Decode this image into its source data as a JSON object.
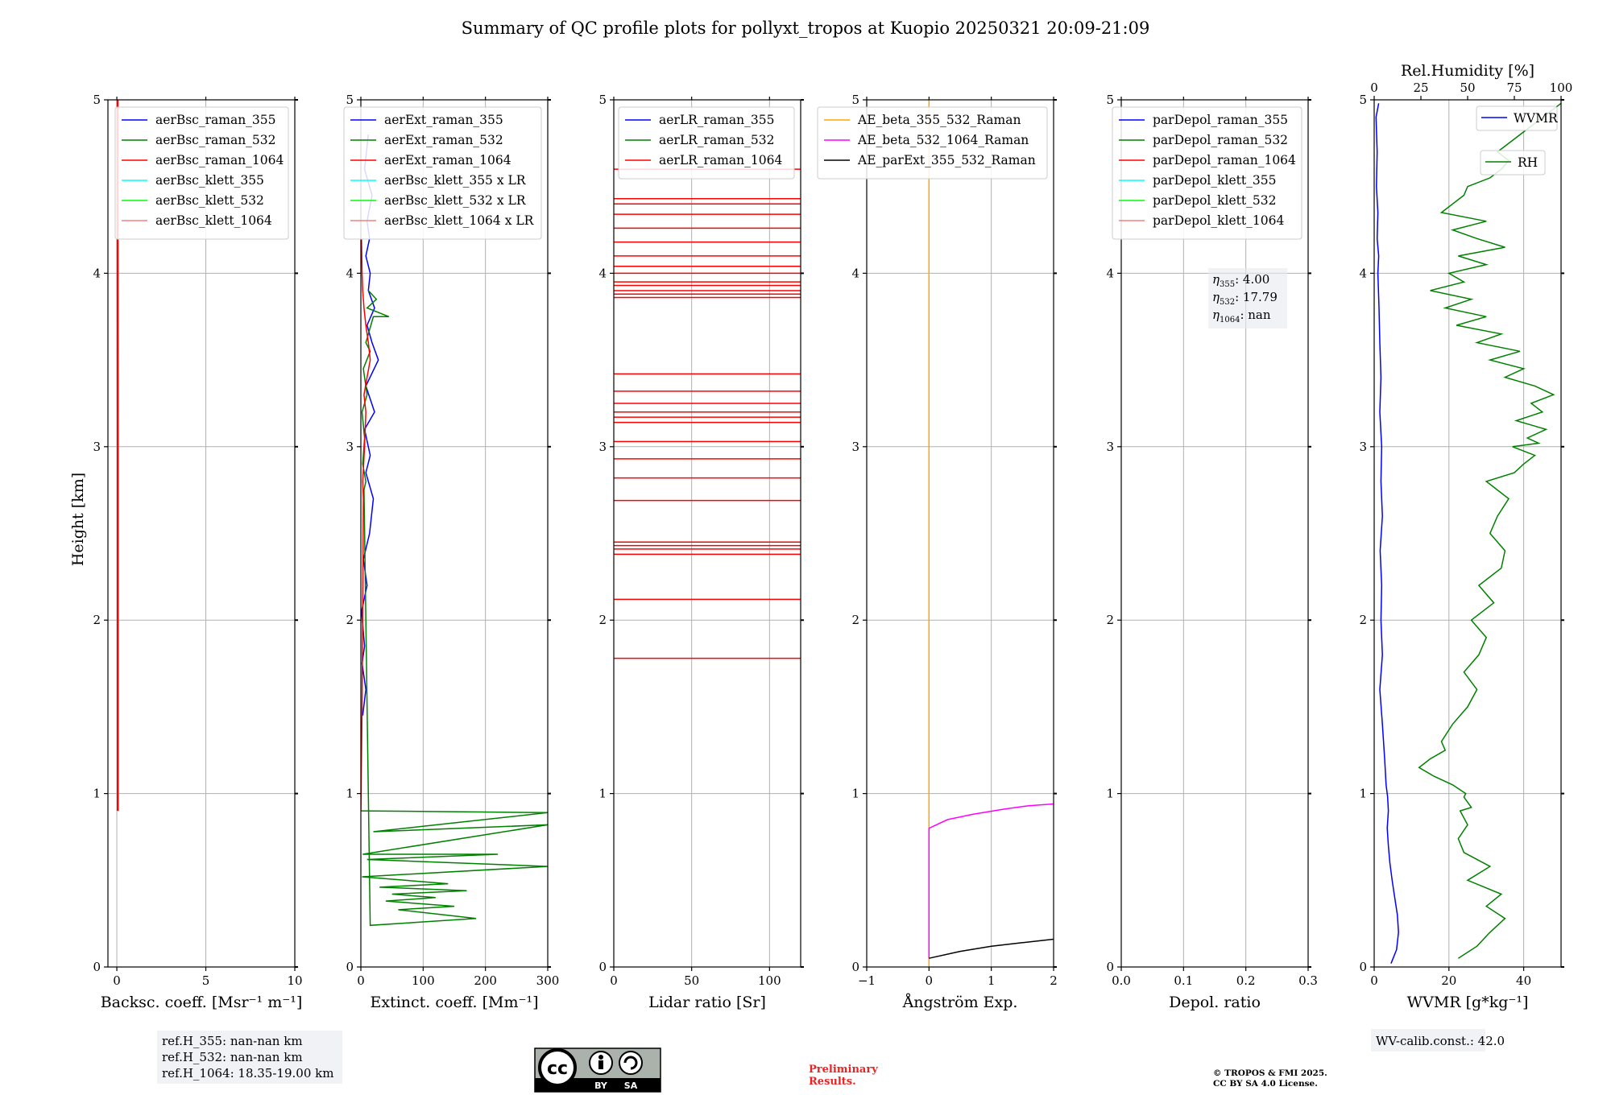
{
  "figure": {
    "title": "Summary of QC profile plots for pollyxt_tropos at Kuopio 20250321 20:09-21:09",
    "y_label": "Height [km]",
    "ref_heights": [
      "ref.H_355: nan-nan km",
      "ref.H_532: nan-nan km",
      "ref.H_1064: 18.35-19.00 km"
    ],
    "wv_calib": "WV-calib.const.: 42.0",
    "eta_lines": [
      {
        "sym": "η",
        "sub": "355",
        "val": ": 4.00"
      },
      {
        "sym": "η",
        "sub": "532",
        "val": ": 17.79"
      },
      {
        "sym": "η",
        "sub": "1064",
        "val": ": nan"
      }
    ],
    "preliminary": [
      "Preliminary",
      "Results."
    ],
    "copyright": [
      "© TROPOS & FMI 2025.",
      "CC BY SA 4.0 License."
    ],
    "cc_badge": {
      "main": "cc",
      "by": "BY",
      "sa": "SA"
    },
    "colors": {
      "blue": "#0000ff",
      "green": "#008000",
      "red": "#ff0000",
      "cyan": "#00ffff",
      "lime": "#00ff00",
      "pink": "#f08080",
      "orange": "#ffa500",
      "magenta": "#ff00ff",
      "black": "#000000"
    }
  },
  "chart_data": [
    {
      "type": "line",
      "xlabel": "Backsc. coeff. [Msr⁻¹ m⁻¹]",
      "xlim": [
        -0.5,
        10
      ],
      "xticks": [
        0,
        5,
        10
      ],
      "xtick_labels": [
        "0",
        "5",
        "10"
      ],
      "ylim": [
        0,
        5
      ],
      "yticks": [
        0,
        1,
        2,
        3,
        4,
        5
      ],
      "ytick_labels": [
        "0",
        "1",
        "2",
        "3",
        "4",
        "5"
      ],
      "grid": true,
      "legend": "top-right",
      "series": [
        {
          "name": "aerBsc_raman_355",
          "color": "#0000ff",
          "x": [],
          "y": []
        },
        {
          "name": "aerBsc_raman_532",
          "color": "#008000",
          "x": [],
          "y": []
        },
        {
          "name": "aerBsc_raman_1064",
          "color": "#ff0000",
          "x": [
            0.05,
            0.05,
            0.04
          ],
          "y": [
            0.9,
            3.0,
            5.0
          ]
        },
        {
          "name": "aerBsc_klett_355",
          "color": "#00ffff",
          "x": [],
          "y": []
        },
        {
          "name": "aerBsc_klett_532",
          "color": "#00ff00",
          "x": [],
          "y": []
        },
        {
          "name": "aerBsc_klett_1064",
          "color": "#f08080",
          "x": [],
          "y": []
        }
      ]
    },
    {
      "type": "line",
      "xlabel": "Extinct. coeff. [Mm⁻¹]",
      "xlim": [
        0,
        300
      ],
      "xticks": [
        0,
        100,
        200,
        300
      ],
      "xtick_labels": [
        "0",
        "100",
        "200",
        "300"
      ],
      "ylim": [
        0,
        5
      ],
      "yticks": [
        0,
        1,
        2,
        3,
        4,
        5
      ],
      "ytick_labels": [
        "0",
        "1",
        "2",
        "3",
        "4",
        "5"
      ],
      "grid": true,
      "legend": "top-right",
      "series": [
        {
          "name": "aerExt_raman_355",
          "color": "#0000ff",
          "x": [
            3,
            8,
            2,
            6,
            1,
            10,
            4,
            14,
            20,
            8,
            15,
            6,
            22,
            8,
            28,
            18,
            10,
            22,
            12,
            15,
            8,
            14,
            10,
            18,
            6,
            12
          ],
          "y": [
            1.45,
            1.6,
            1.75,
            1.85,
            2.05,
            2.2,
            2.35,
            2.5,
            2.7,
            2.85,
            2.95,
            3.1,
            3.2,
            3.35,
            3.5,
            3.6,
            3.7,
            3.8,
            3.9,
            4.0,
            4.1,
            4.2,
            4.3,
            4.45,
            4.6,
            4.8
          ]
        },
        {
          "name": "aerExt_raman_532",
          "color": "#008000",
          "x": [
            0,
            300,
            20,
            300,
            3,
            220,
            10,
            300,
            2,
            140,
            30,
            170,
            50,
            120,
            40,
            150,
            60,
            185,
            15,
            5,
            8,
            3,
            6,
            2,
            10,
            4,
            15,
            8,
            20,
            45,
            10,
            25,
            12
          ],
          "y": [
            0.9,
            0.89,
            0.78,
            0.82,
            0.65,
            0.65,
            0.62,
            0.58,
            0.52,
            0.48,
            0.46,
            0.44,
            0.42,
            0.4,
            0.38,
            0.35,
            0.33,
            0.28,
            0.24,
            2.75,
            2.8,
            2.9,
            3.05,
            3.2,
            3.3,
            3.45,
            3.55,
            3.6,
            3.75,
            3.75,
            3.8,
            3.85,
            3.9
          ]
        },
        {
          "name": "aerExt_raman_1064",
          "color": "#ff0000",
          "x": [
            0,
            2,
            4,
            3,
            6,
            8,
            5,
            10,
            15,
            12,
            8,
            5,
            3,
            2,
            1
          ],
          "y": [
            0.9,
            1.5,
            2.7,
            2.8,
            3.0,
            3.2,
            3.3,
            3.4,
            3.5,
            3.6,
            3.7,
            3.8,
            3.9,
            4.0,
            4.2
          ]
        },
        {
          "name": "aerBsc_klett_355 x LR",
          "color": "#00ffff",
          "x": [],
          "y": []
        },
        {
          "name": "aerBsc_klett_532 x LR",
          "color": "#00ff00",
          "x": [],
          "y": []
        },
        {
          "name": "aerBsc_klett_1064 x LR",
          "color": "#f08080",
          "x": [],
          "y": []
        }
      ]
    },
    {
      "type": "line",
      "xlabel": "Lidar ratio [Sr]",
      "xlim": [
        0,
        120
      ],
      "xticks": [
        0,
        50,
        100
      ],
      "xtick_labels": [
        "0",
        "50",
        "100"
      ],
      "ylim": [
        0,
        5
      ],
      "yticks": [
        0,
        1,
        2,
        3,
        4,
        5
      ],
      "ytick_labels": [
        "0",
        "1",
        "2",
        "3",
        "4",
        "5"
      ],
      "grid": true,
      "legend": "top-right",
      "series": [
        {
          "name": "aerLR_raman_355",
          "color": "#0000ff",
          "x": [],
          "y": []
        },
        {
          "name": "aerLR_raman_532",
          "color": "#008000",
          "x": [],
          "y": []
        },
        {
          "name": "aerLR_raman_1064",
          "color": "#ff0000",
          "levels": [
            1.78,
            2.12,
            2.38,
            2.41,
            2.43,
            2.45,
            2.69,
            2.82,
            2.93,
            3.03,
            3.14,
            3.17,
            3.2,
            3.25,
            3.32,
            3.42,
            3.86,
            3.88,
            3.9,
            3.93,
            3.95,
            4.0,
            4.04,
            4.1,
            4.18,
            4.26,
            4.34,
            4.4,
            4.43,
            4.6
          ]
        }
      ]
    },
    {
      "type": "line",
      "xlabel": "Ångström Exp.",
      "xlim": [
        -1,
        2
      ],
      "xticks": [
        -1,
        0,
        1,
        2
      ],
      "xtick_labels": [
        "−1",
        "0",
        "1",
        "2"
      ],
      "ylim": [
        0,
        5
      ],
      "yticks": [
        0,
        1,
        2,
        3,
        4,
        5
      ],
      "ytick_labels": [
        "0",
        "1",
        "2",
        "3",
        "4",
        "5"
      ],
      "grid": true,
      "legend": "top-right",
      "series": [
        {
          "name": "AE_beta_355_532_Raman",
          "color": "#ffa500",
          "x": [
            0,
            0
          ],
          "y": [
            0,
            5
          ]
        },
        {
          "name": "AE_beta_532_1064_Raman",
          "color": "#ff00ff",
          "x": [
            0,
            0,
            0.3,
            0.7,
            1.2,
            1.6,
            2.0
          ],
          "y": [
            0.05,
            0.8,
            0.85,
            0.88,
            0.91,
            0.93,
            0.94
          ]
        },
        {
          "name": "AE_parExt_355_532_Raman",
          "color": "#000000",
          "x": [
            0,
            0.5,
            1.0,
            1.5,
            2.0
          ],
          "y": [
            0.05,
            0.09,
            0.12,
            0.14,
            0.16
          ]
        }
      ]
    },
    {
      "type": "line",
      "xlabel": "Depol. ratio",
      "xlim": [
        0,
        0.3
      ],
      "xticks": [
        0,
        0.1,
        0.2,
        0.3
      ],
      "xtick_labels": [
        "0.0",
        "0.1",
        "0.2",
        "0.3"
      ],
      "ylim": [
        0,
        5
      ],
      "yticks": [
        0,
        1,
        2,
        3,
        4,
        5
      ],
      "ytick_labels": [
        "0",
        "1",
        "2",
        "3",
        "4",
        "5"
      ],
      "grid": true,
      "legend": "top-right",
      "series": [
        {
          "name": "parDepol_raman_355",
          "color": "#0000ff",
          "x": [],
          "y": []
        },
        {
          "name": "parDepol_raman_532",
          "color": "#008000",
          "x": [],
          "y": []
        },
        {
          "name": "parDepol_raman_1064",
          "color": "#ff0000",
          "x": [],
          "y": []
        },
        {
          "name": "parDepol_klett_355",
          "color": "#00ffff",
          "x": [],
          "y": []
        },
        {
          "name": "parDepol_klett_532",
          "color": "#00ff00",
          "x": [],
          "y": []
        },
        {
          "name": "parDepol_klett_1064",
          "color": "#f08080",
          "x": [],
          "y": []
        }
      ]
    },
    {
      "type": "line",
      "xlabel": "WVMR [g*kg⁻¹]",
      "xlim": [
        0,
        50
      ],
      "xticks": [
        0,
        20,
        40
      ],
      "xtick_labels": [
        "0",
        "20",
        "40"
      ],
      "x2label": "Rel.Humidity [%]",
      "x2lim": [
        0,
        100
      ],
      "x2ticks": [
        0,
        25,
        50,
        75,
        100
      ],
      "x2tick_labels": [
        "0",
        "25",
        "50",
        "75",
        "100"
      ],
      "ylim": [
        0,
        5
      ],
      "yticks": [
        0,
        1,
        2,
        3,
        4,
        5
      ],
      "ytick_labels": [
        "0",
        "1",
        "2",
        "3",
        "4",
        "5"
      ],
      "grid": true,
      "legend": "top-right",
      "series": [
        {
          "name": "WVMR",
          "color": "#0000ff",
          "axis": "x",
          "x": [
            4.5,
            6,
            6.5,
            6.2,
            5.5,
            4.8,
            4.2,
            3.8,
            3.5,
            3.8,
            3.6,
            3.2,
            2.8,
            2.2,
            1.5,
            2.2,
            1.8,
            2.0,
            1.6,
            2.2,
            1.8,
            2.0,
            1.5,
            1.8,
            1.5,
            1.3,
            1.0,
            1.2,
            0.8,
            1.0,
            0.6,
            0.8,
            0.5,
            1.2
          ],
          "y": [
            0.02,
            0.1,
            0.2,
            0.3,
            0.4,
            0.5,
            0.6,
            0.7,
            0.8,
            0.9,
            0.98,
            1.05,
            1.2,
            1.4,
            1.6,
            1.8,
            2.0,
            2.2,
            2.4,
            2.6,
            2.8,
            3.0,
            3.2,
            3.4,
            3.6,
            3.8,
            4.0,
            4.1,
            4.2,
            4.35,
            4.5,
            4.7,
            4.9,
            4.98
          ]
        },
        {
          "name": "RH",
          "color": "#008000",
          "axis": "x2",
          "x": [
            45,
            55,
            62,
            70,
            60,
            68,
            50,
            62,
            48,
            45,
            50,
            46,
            52,
            48,
            49,
            42,
            32,
            24,
            30,
            38,
            36,
            42,
            50,
            55,
            48,
            56,
            60,
            52,
            64,
            56,
            68,
            70,
            62,
            66,
            72,
            60,
            75,
            80,
            86,
            74,
            88,
            82,
            92,
            76,
            90,
            84,
            96,
            86,
            70,
            80,
            62,
            78,
            55,
            68,
            44,
            60,
            38,
            52,
            30,
            48,
            40,
            60,
            45,
            70,
            55,
            42,
            60,
            36,
            48,
            50,
            62,
            68,
            72,
            66,
            100
          ],
          "y": [
            0.05,
            0.12,
            0.2,
            0.28,
            0.35,
            0.42,
            0.5,
            0.58,
            0.66,
            0.74,
            0.82,
            0.9,
            0.92,
            0.98,
            1.0,
            1.05,
            1.1,
            1.15,
            1.2,
            1.25,
            1.3,
            1.4,
            1.5,
            1.6,
            1.7,
            1.8,
            1.9,
            2.0,
            2.1,
            2.2,
            2.3,
            2.4,
            2.5,
            2.6,
            2.7,
            2.8,
            2.85,
            2.9,
            2.95,
            3.0,
            3.02,
            3.05,
            3.1,
            3.15,
            3.2,
            3.25,
            3.3,
            3.35,
            3.4,
            3.45,
            3.5,
            3.55,
            3.6,
            3.65,
            3.7,
            3.75,
            3.8,
            3.85,
            3.9,
            3.95,
            4.0,
            4.05,
            4.1,
            4.15,
            4.2,
            4.25,
            4.3,
            4.35,
            4.45,
            4.5,
            4.55,
            4.6,
            4.65,
            4.7,
            4.98
          ]
        }
      ]
    }
  ]
}
